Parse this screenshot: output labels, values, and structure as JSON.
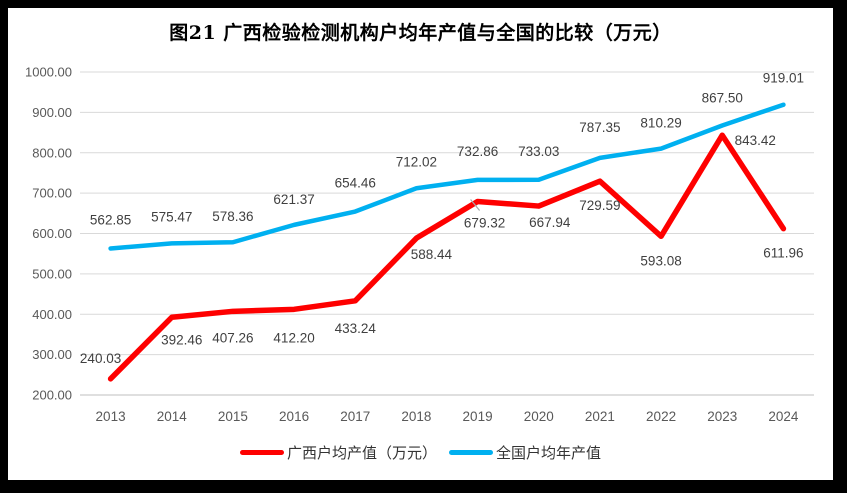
{
  "title": "图21 广西检验检测机构户均年产值与全国的比较（万元）",
  "legend": [
    {
      "id": "guangxi",
      "label": "广西户均产值（万元）",
      "color": "#fe0000"
    },
    {
      "id": "national",
      "label": "全国户均年产值",
      "color": "#00b0f0"
    }
  ],
  "chart_data": {
    "type": "line",
    "title": "图21 广西检验检测机构户均年产值与全国的比较（万元）",
    "categories": [
      "2013",
      "2014",
      "2015",
      "2016",
      "2017",
      "2018",
      "2019",
      "2020",
      "2021",
      "2022",
      "2023",
      "2024"
    ],
    "series": [
      {
        "id": "guangxi",
        "name": "广西户均产值（万元）",
        "color": "#fe0000",
        "width": 5.5,
        "values": [
          240.03,
          392.46,
          407.26,
          412.2,
          433.24,
          588.44,
          679.32,
          667.94,
          729.59,
          593.08,
          843.42,
          611.96
        ],
        "label_offsets": [
          [
            -10,
            -16
          ],
          [
            10,
            27
          ],
          [
            0,
            31
          ],
          [
            0,
            33
          ],
          [
            0,
            32
          ],
          [
            15,
            21
          ],
          [
            7,
            26
          ],
          [
            11,
            21
          ],
          [
            0,
            29
          ],
          [
            0,
            29
          ],
          [
            33,
            10
          ],
          [
            0,
            29
          ]
        ],
        "callout_index": 6
      },
      {
        "id": "national",
        "name": "全国户均年产值",
        "color": "#00b0f0",
        "width": 4.5,
        "values": [
          562.85,
          575.47,
          578.36,
          621.37,
          654.46,
          712.02,
          732.86,
          733.03,
          787.35,
          810.29,
          867.5,
          919.01
        ],
        "label_offsets": [
          [
            0,
            -24
          ],
          [
            0,
            -22
          ],
          [
            0,
            -21
          ],
          [
            0,
            -21
          ],
          [
            0,
            -24
          ],
          [
            0,
            -22
          ],
          [
            0,
            -24
          ],
          [
            0,
            -24
          ],
          [
            0,
            -26
          ],
          [
            0,
            -21
          ],
          [
            0,
            -23
          ],
          [
            0,
            -22
          ]
        ]
      }
    ],
    "ylim": [
      200,
      1000
    ],
    "ytick_step": 100,
    "ytick_decimals": 2,
    "label_decimals": 2,
    "grid": true,
    "legend_position": "bottom",
    "colors": {
      "data_label": "#404040",
      "axis_label": "#595959",
      "gridline": "#d9d9d9",
      "axis_line": "#bfbfbf",
      "callout_line": "#a6a6a6"
    }
  }
}
